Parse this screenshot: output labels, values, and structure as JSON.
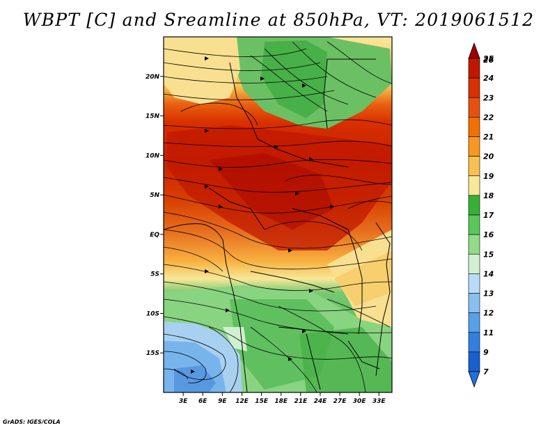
{
  "title": "WBPT [C] and Sreamline at 850hPa, VT: 2019061512",
  "credit": "GrADS: IGES/COLA",
  "map": {
    "lon_range": [
      0,
      35
    ],
    "lat_range": [
      -20,
      25
    ],
    "lat_ticks": [
      {
        "lat": 20,
        "label": "20N"
      },
      {
        "lat": 15,
        "label": "15N"
      },
      {
        "lat": 10,
        "label": "10N"
      },
      {
        "lat": 5,
        "label": "5N"
      },
      {
        "lat": 0,
        "label": "EQ"
      },
      {
        "lat": -5,
        "label": "5S"
      },
      {
        "lat": -10,
        "label": "10S"
      },
      {
        "lat": -15,
        "label": "15S"
      }
    ],
    "lon_ticks": [
      {
        "lon": 3,
        "label": "3E"
      },
      {
        "lon": 6,
        "label": "6E"
      },
      {
        "lon": 9,
        "label": "9E"
      },
      {
        "lon": 12,
        "label": "12E"
      },
      {
        "lon": 15,
        "label": "15E"
      },
      {
        "lon": 18,
        "label": "18E"
      },
      {
        "lon": 21,
        "label": "21E"
      },
      {
        "lon": 24,
        "label": "24E"
      },
      {
        "lon": 27,
        "label": "27E"
      },
      {
        "lon": 30,
        "label": "30E"
      },
      {
        "lon": 33,
        "label": "33E"
      }
    ]
  },
  "colorbar": {
    "levels": [
      "26",
      "25",
      "24",
      "23",
      "22",
      "21",
      "20",
      "19",
      "18",
      "17",
      "16",
      "15",
      "14",
      "13",
      "12",
      "11",
      "9",
      "7"
    ],
    "colors": [
      "#a00000",
      "#c01800",
      "#d83000",
      "#e85010",
      "#f07000",
      "#f89820",
      "#f8c050",
      "#f8e898",
      "#38b038",
      "#58c858",
      "#90dc88",
      "#d0f0d0",
      "#b8dcf8",
      "#88c0f0",
      "#58a0e8",
      "#3080e0",
      "#1860d0",
      "#2070e0"
    ]
  }
}
